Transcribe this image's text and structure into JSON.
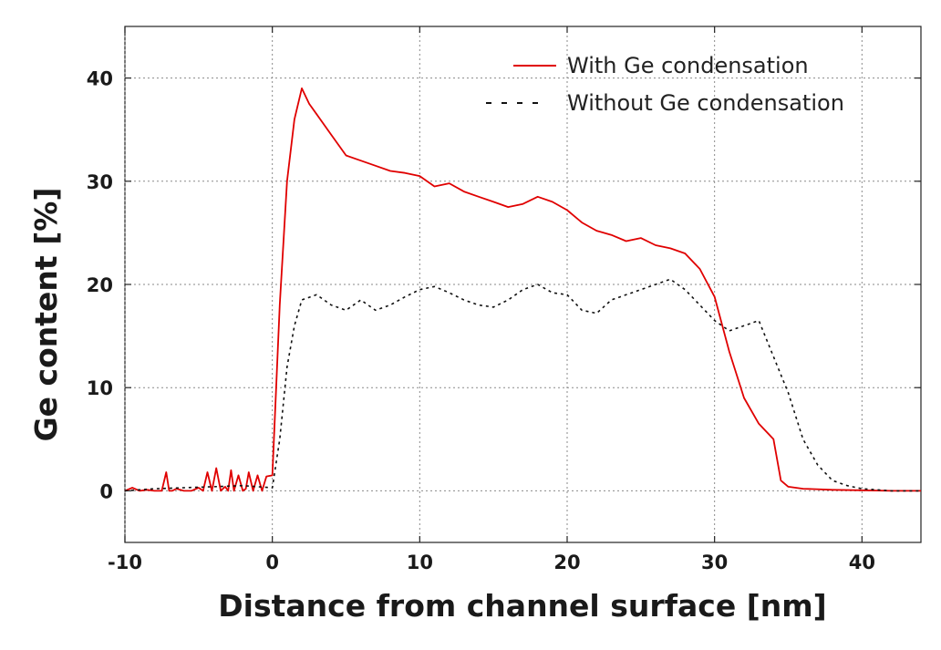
{
  "chart_data": {
    "type": "line",
    "title": "",
    "xlabel": "Distance from channel surface [nm]",
    "ylabel": "Ge content [%]",
    "xlim": [
      -10,
      44
    ],
    "ylim": [
      -5,
      45
    ],
    "x_ticks": [
      "-10",
      "0",
      "10",
      "20",
      "30",
      "40"
    ],
    "y_ticks": [
      "0",
      "10",
      "20",
      "30",
      "40"
    ],
    "grid": true,
    "legend_position": "top-right",
    "series": [
      {
        "name": "With Ge condensation",
        "color": "#e00000",
        "style": "solid",
        "x": [
          -10,
          -9.5,
          -9,
          -8.5,
          -8,
          -7.5,
          -7.2,
          -7,
          -6.8,
          -6.5,
          -6,
          -5.5,
          -5,
          -4.7,
          -4.4,
          -4.1,
          -3.8,
          -3.5,
          -3.2,
          -3,
          -2.8,
          -2.6,
          -2.3,
          -2,
          -1.8,
          -1.6,
          -1.3,
          -1,
          -0.7,
          -0.4,
          0,
          0.5,
          1,
          1.5,
          2,
          2.5,
          3,
          4,
          5,
          6,
          7,
          8,
          9,
          10,
          11,
          12,
          13,
          14,
          15,
          16,
          17,
          18,
          19,
          20,
          21,
          22,
          23,
          24,
          25,
          26,
          27,
          28,
          29,
          30,
          31,
          32,
          33,
          34,
          34.5,
          35,
          36,
          38,
          40,
          42,
          44
        ],
        "values": [
          0,
          0.3,
          0,
          0.1,
          0,
          0,
          1.8,
          0,
          0,
          0.2,
          0,
          0,
          0.3,
          0,
          1.8,
          0,
          2.2,
          0,
          0.4,
          0,
          2,
          0,
          1.5,
          0,
          0.2,
          1.8,
          0,
          1.5,
          0,
          1.4,
          1.5,
          18,
          30,
          36,
          39,
          37.5,
          36.5,
          34.5,
          32.5,
          32,
          31.5,
          31,
          30.8,
          30.5,
          29.5,
          29.8,
          29,
          28.5,
          28,
          27.5,
          27.8,
          28.5,
          28,
          27.2,
          26,
          25.2,
          24.8,
          24.2,
          24.5,
          23.8,
          23.5,
          23,
          21.5,
          18.8,
          13.5,
          9,
          6.5,
          5,
          1,
          0.4,
          0.2,
          0.1,
          0.05,
          0,
          0
        ]
      },
      {
        "name": "Without Ge condensation",
        "color": "#111111",
        "style": "dashed",
        "x": [
          -10,
          -8,
          -6,
          -4,
          -2,
          -1,
          0,
          0.5,
          1,
          1.5,
          2,
          3,
          4,
          5,
          6,
          7,
          8,
          9,
          10,
          11,
          12,
          13,
          14,
          15,
          16,
          17,
          18,
          19,
          20,
          21,
          22,
          23,
          24,
          25,
          26,
          27,
          28,
          29,
          30,
          31,
          32,
          33,
          34,
          35,
          36,
          37,
          38,
          39,
          40,
          42,
          44
        ],
        "values": [
          0,
          0.2,
          0.3,
          0.4,
          0.5,
          0.4,
          0.3,
          5,
          12,
          16,
          18.5,
          19,
          18,
          17.5,
          18.5,
          17.5,
          18,
          18.8,
          19.5,
          19.8,
          19.2,
          18.5,
          18,
          17.8,
          18.5,
          19.5,
          20,
          19.2,
          19,
          17.5,
          17.2,
          18.5,
          19,
          19.5,
          20,
          20.5,
          19.5,
          18,
          16.5,
          15.5,
          16,
          16.5,
          13,
          9.5,
          5,
          2.5,
          1,
          0.5,
          0.2,
          0,
          0
        ]
      }
    ]
  }
}
